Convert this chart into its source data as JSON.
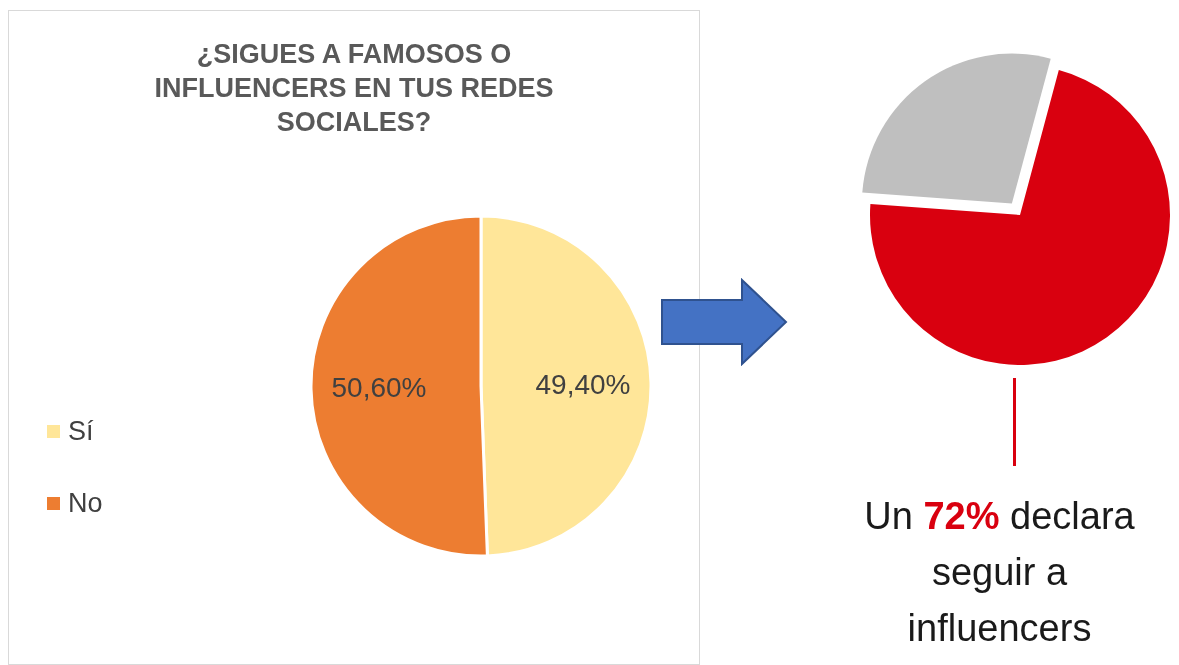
{
  "chart_data": [
    {
      "type": "pie",
      "title": "¿SIGUES A FAMOSOS O INFLUENCERS EN TUS REDES SOCIALES?",
      "categories": [
        "Sí",
        "No"
      ],
      "values": [
        49.4,
        50.6
      ],
      "colors": [
        "#ffe699",
        "#ed7d31"
      ],
      "value_labels": [
        "49,40%",
        "50,60%"
      ],
      "legend": "left"
    },
    {
      "type": "pie",
      "categories": [
        null,
        null
      ],
      "values": [
        72,
        28
      ],
      "colors": [
        "#d9000f",
        "#bfbfbf"
      ],
      "annotations": [
        "Un 72% declara seguir a influencers"
      ]
    }
  ]
}
